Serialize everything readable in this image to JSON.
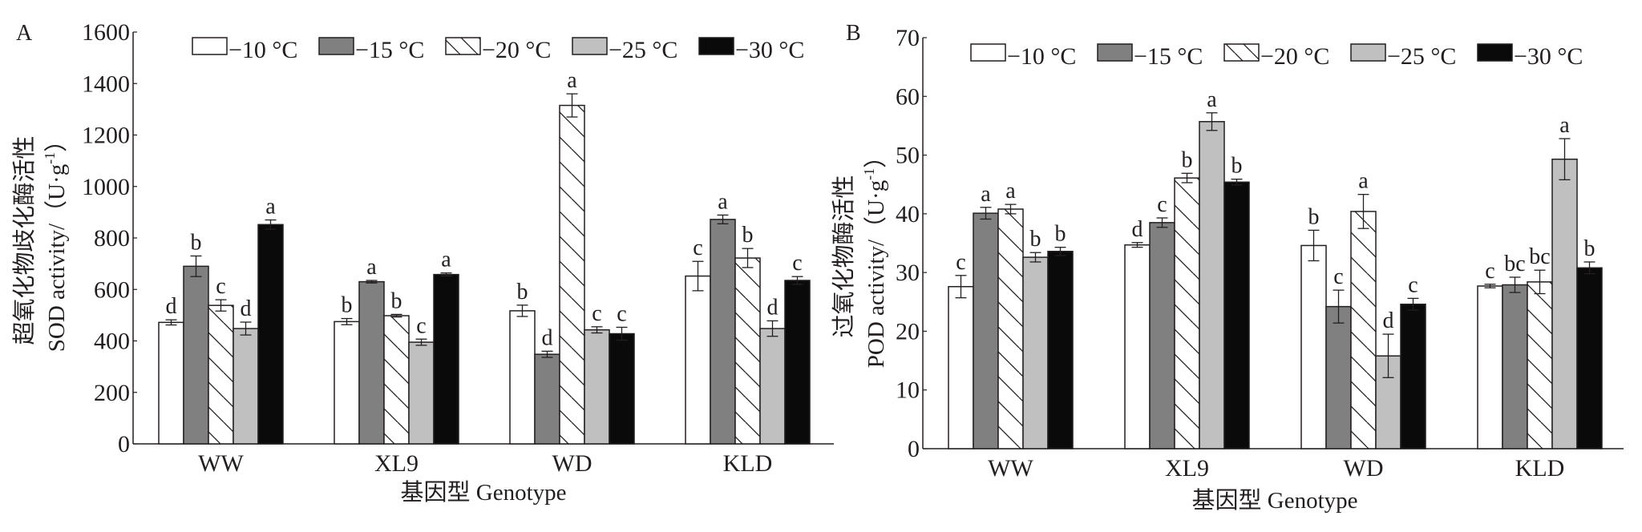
{
  "colors": {
    "axis": "#231f20",
    "t10": "#ffffff",
    "t15": "#808080",
    "t20": "hatch",
    "t25": "#c0c0c0",
    "t30": "#0a0a0a"
  },
  "chart_data": [
    {
      "type": "bar",
      "panel_label": "A",
      "title": "",
      "ylabel_cn": "超氧化物歧化酶活性",
      "ylabel_en": "SOD activity/（U·g",
      "ylabel_sup": "-1",
      "ylabel_close": "）",
      "xlabel": "基因型 Genotype",
      "ylim": [
        0,
        1600
      ],
      "yticks": [
        "0",
        "200",
        "400",
        "600",
        "800",
        "1000",
        "1200",
        "1400",
        "1600"
      ],
      "ytick_values": [
        0,
        200,
        400,
        600,
        800,
        1000,
        1200,
        1400,
        1600
      ],
      "categories": [
        "WW",
        "XL9",
        "WD",
        "KLD"
      ],
      "legend_position": "top",
      "series": [
        {
          "name": "−10 °C",
          "key": "t10",
          "values": [
            472,
            475,
            517,
            652
          ],
          "errors": [
            10,
            12,
            22,
            57
          ],
          "letters": [
            "d",
            "b",
            "b",
            "c"
          ]
        },
        {
          "name": "−15 °C",
          "key": "t15",
          "values": [
            690,
            630,
            348,
            872
          ],
          "errors": [
            40,
            5,
            12,
            17
          ],
          "letters": [
            "b",
            "a",
            "d",
            "a"
          ]
        },
        {
          "name": "−20 °C",
          "key": "t20",
          "values": [
            538,
            498,
            1315,
            722
          ],
          "errors": [
            22,
            5,
            45,
            37
          ],
          "letters": [
            "c",
            "b",
            "a",
            "b"
          ]
        },
        {
          "name": "−25 °C",
          "key": "t25",
          "values": [
            448,
            395,
            443,
            448
          ],
          "errors": [
            25,
            12,
            12,
            30
          ],
          "letters": [
            "d",
            "c",
            "c",
            "d"
          ]
        },
        {
          "name": "−30 °C",
          "key": "t30",
          "values": [
            852,
            658,
            428,
            635
          ],
          "errors": [
            18,
            6,
            25,
            15
          ],
          "letters": [
            "a",
            "a",
            "c",
            "c"
          ]
        }
      ]
    },
    {
      "type": "bar",
      "panel_label": "B",
      "title": "",
      "ylabel_cn": "过氧化物酶活性",
      "ylabel_en": "POD activity/（U·g",
      "ylabel_sup": "-1",
      "ylabel_close": "）",
      "xlabel": "基因型 Genotype",
      "ylim": [
        0,
        70
      ],
      "yticks": [
        "0",
        "10",
        "20",
        "30",
        "40",
        "50",
        "60",
        "70"
      ],
      "ytick_values": [
        0,
        10,
        20,
        30,
        40,
        50,
        60,
        70
      ],
      "categories": [
        "WW",
        "XL9",
        "WD",
        "KLD"
      ],
      "legend_position": "top",
      "series": [
        {
          "name": "−10 °C",
          "key": "t10",
          "values": [
            27.6,
            34.7,
            34.6,
            27.7
          ],
          "errors": [
            1.9,
            0.4,
            2.6,
            0.3
          ],
          "letters": [
            "c",
            "d",
            "b",
            "c"
          ]
        },
        {
          "name": "−15 °C",
          "key": "t15",
          "values": [
            40.1,
            38.5,
            24.2,
            27.9
          ],
          "errors": [
            1.0,
            0.8,
            2.8,
            1.3
          ],
          "letters": [
            "a",
            "c",
            "c",
            "bc"
          ]
        },
        {
          "name": "−20 °C",
          "key": "t20",
          "values": [
            40.8,
            46.1,
            40.4,
            28.4
          ],
          "errors": [
            0.8,
            0.8,
            2.9,
            2.0
          ],
          "letters": [
            "a",
            "b",
            "a",
            "bc"
          ]
        },
        {
          "name": "−25 °C",
          "key": "t25",
          "values": [
            32.6,
            55.7,
            15.8,
            49.3
          ],
          "errors": [
            0.8,
            1.5,
            3.7,
            3.5
          ],
          "letters": [
            "b",
            "a",
            "d",
            "a"
          ]
        },
        {
          "name": "−30 °C",
          "key": "t30",
          "values": [
            33.6,
            45.4,
            24.6,
            30.8
          ],
          "errors": [
            0.7,
            0.5,
            1.0,
            1.0
          ],
          "letters": [
            "b",
            "b",
            "c",
            "b"
          ]
        }
      ]
    }
  ]
}
